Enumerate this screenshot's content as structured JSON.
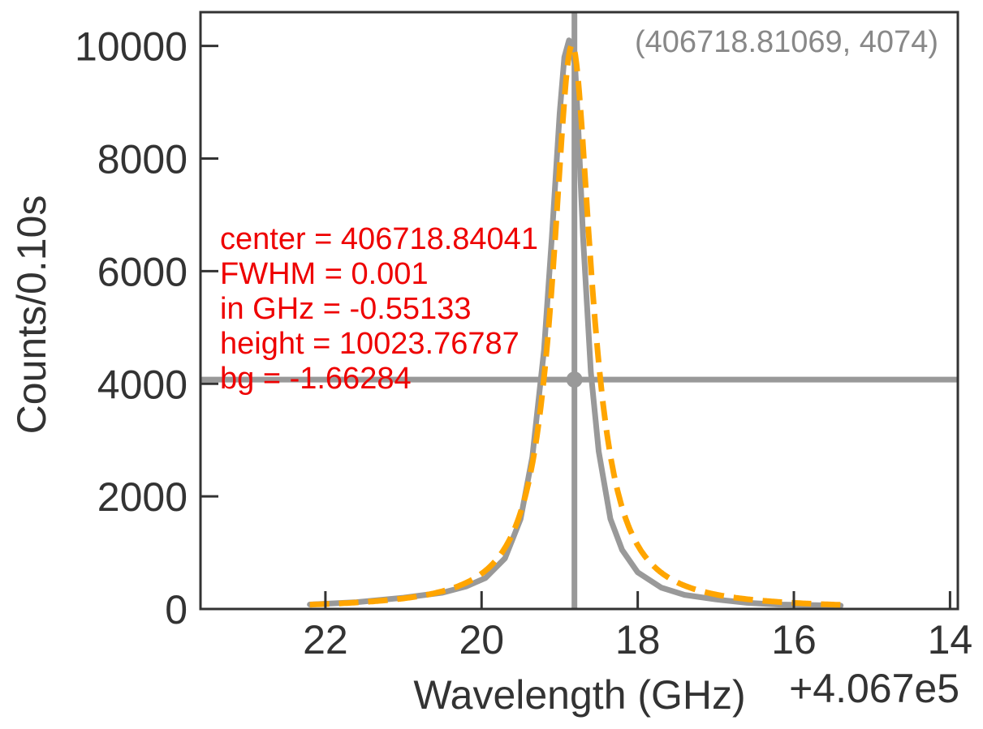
{
  "chart_data": {
    "type": "line",
    "xlabel": "Wavelength (GHz)",
    "ylabel": "Counts/0.10s",
    "x_offset_label": "+4.067e5",
    "x_offset": 406700,
    "xlim": [
      23.6,
      13.9
    ],
    "ylim": [
      0,
      10600
    ],
    "x_inverted": true,
    "x_ticks": [
      22,
      20,
      18,
      16,
      14
    ],
    "x_tick_labels": [
      "22",
      "20",
      "18",
      "16",
      "14"
    ],
    "y_ticks": [
      0,
      2000,
      4000,
      6000,
      8000,
      10000
    ],
    "y_tick_labels": [
      "0",
      "2000",
      "4000",
      "6000",
      "8000",
      "10000"
    ],
    "grid": false,
    "series": [
      {
        "kind": "data",
        "color": "#999999",
        "style": "solid",
        "x": [
          22.2,
          21.6,
          21.0,
          20.5,
          20.2,
          19.95,
          19.7,
          19.5,
          19.35,
          19.2,
          19.1,
          19.0,
          18.94,
          18.88,
          18.84,
          18.8,
          18.76,
          18.7,
          18.6,
          18.5,
          18.35,
          18.2,
          18.0,
          17.7,
          17.4,
          17.0,
          16.6,
          16.2,
          15.8,
          15.4
        ],
        "y": [
          80,
          120,
          200,
          290,
          400,
          550,
          900,
          1600,
          2700,
          4600,
          6600,
          8800,
          9800,
          10100,
          10000,
          9600,
          8500,
          6600,
          4200,
          2800,
          1600,
          1050,
          650,
          380,
          250,
          170,
          110,
          80,
          70,
          60
        ]
      },
      {
        "kind": "fit",
        "color": "#ffa500",
        "style": "dashed",
        "center": 406718.84041,
        "fwhm_plot": 0.6,
        "height": 10023.76787,
        "bg": -1.66284,
        "x_range": [
          22.2,
          15.4
        ]
      }
    ],
    "cursor": {
      "x": 406718.81069,
      "y": 4074,
      "label": "(406718.81069, 4074)",
      "color": "#999999"
    },
    "annotations": [
      "center = 406718.84041",
      "FWHM = 0.001",
      "in GHz = -0.55133",
      "height = 10023.76787",
      "bg = -1.66284"
    ],
    "annotation_color": "#ee0000"
  }
}
